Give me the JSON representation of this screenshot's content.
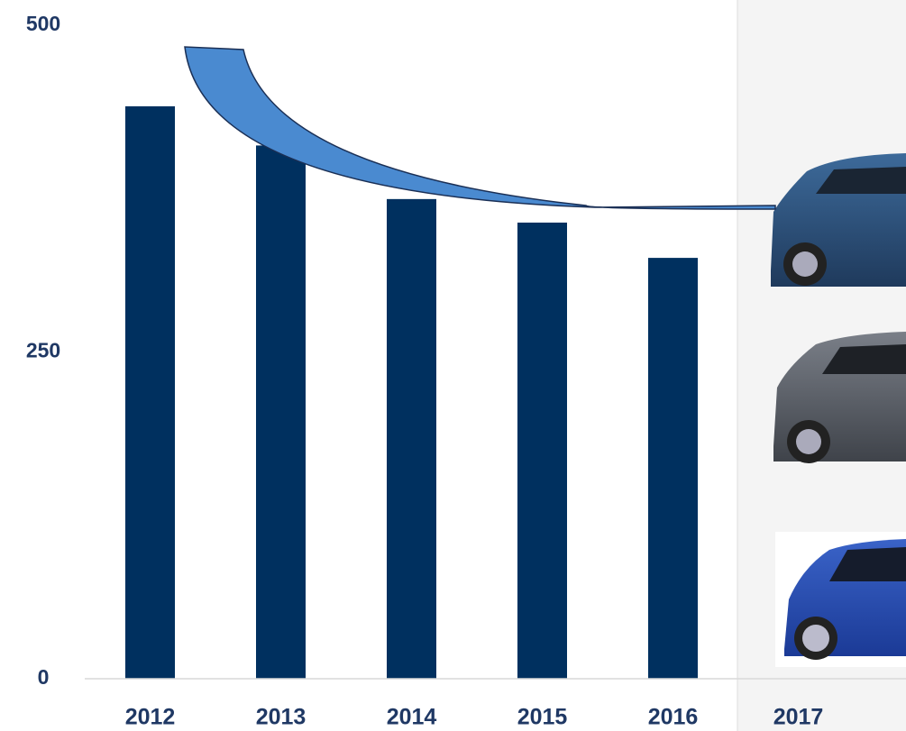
{
  "chart_data": {
    "type": "bar",
    "categories": [
      "2012",
      "2013",
      "2014",
      "2015",
      "2016",
      "2017"
    ],
    "values": [
      438,
      408,
      367,
      349,
      322,
      null
    ],
    "color": "#00305f",
    "ylim": [
      0,
      500
    ],
    "yticks": [
      0,
      250,
      500
    ],
    "grid": false
  }
}
